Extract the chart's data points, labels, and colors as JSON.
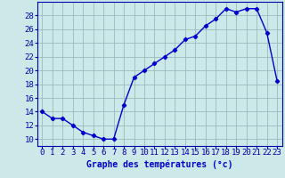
{
  "hours": [
    0,
    1,
    2,
    3,
    4,
    5,
    6,
    7,
    8,
    9,
    10,
    11,
    12,
    13,
    14,
    15,
    16,
    17,
    18,
    19,
    20,
    21,
    22,
    23
  ],
  "temps": [
    14,
    13,
    13,
    12,
    11,
    10.5,
    10,
    10,
    15,
    19,
    20,
    21,
    22,
    23,
    24.5,
    25,
    26.5,
    27.5,
    29,
    28.5,
    29,
    29,
    25.5,
    18.5
  ],
  "xlabel": "Graphe des températures (°c)",
  "ylabel_ticks": [
    10,
    12,
    14,
    16,
    18,
    20,
    22,
    24,
    26,
    28
  ],
  "ylim": [
    9,
    30
  ],
  "xlim": [
    -0.5,
    23.5
  ],
  "line_color": "#0000cc",
  "marker": "D",
  "marker_size": 2.2,
  "bg_color": "#cce8e8",
  "grid_color": "#99bbbb",
  "axis_color": "#0000aa",
  "tick_label_color": "#0000cc",
  "xlabel_color": "#0000cc",
  "xlabel_fontsize": 7,
  "tick_fontsize": 6.5,
  "line_width": 1.0,
  "title": ""
}
